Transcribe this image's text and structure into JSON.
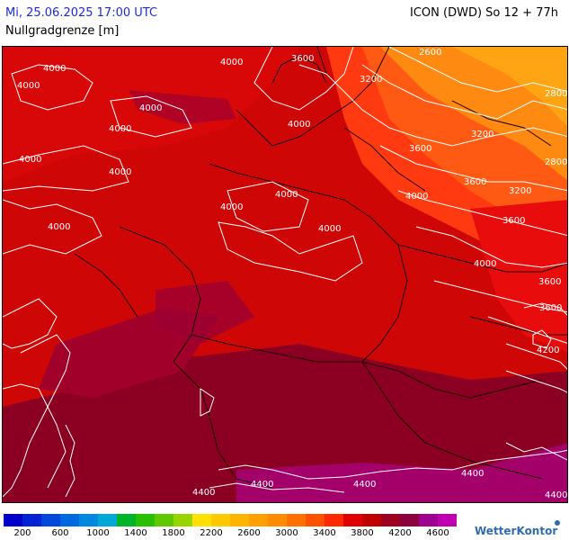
{
  "header": {
    "datetime": "Mi, 25.06.2025 17:00 UTC",
    "model_run": "ICON (DWD) So 12 + 77h",
    "parameter": "Nullgradgrenze [m]"
  },
  "map": {
    "region": "Germany and surroundings",
    "contour_labels": [
      "4000",
      "4000",
      "4000",
      "4000",
      "4000",
      "4000",
      "4000",
      "4000",
      "4000",
      "4000",
      "4000",
      "4000",
      "4000",
      "4000",
      "3600",
      "3600",
      "3600",
      "3600",
      "3600",
      "3600",
      "3200",
      "3200",
      "3200",
      "2800",
      "2800",
      "4200",
      "4400",
      "4400",
      "4400",
      "4400",
      "4400",
      "2600"
    ],
    "fill_colors": {
      "low_east": "#ff9f12",
      "mid_east": "#ff5a14",
      "main": "#cf0606",
      "south": "#8b0022",
      "southeast": "#a3006a"
    }
  },
  "legend": {
    "colors": [
      "#0000c8",
      "#0024d4",
      "#0048dc",
      "#0068e0",
      "#0088e0",
      "#00a8d8",
      "#00b428",
      "#28c000",
      "#60c800",
      "#98d400",
      "#ffe000",
      "#ffc800",
      "#ffb400",
      "#ffa000",
      "#ff8c00",
      "#ff7000",
      "#ff5000",
      "#ff2800",
      "#e00000",
      "#c00000",
      "#a00020",
      "#8c0040",
      "#a00090",
      "#c000b0"
    ],
    "ticks": [
      "200",
      "600",
      "1000",
      "1400",
      "1800",
      "2200",
      "2600",
      "3000",
      "3400",
      "3800",
      "4200",
      "4600"
    ]
  },
  "brand": "WetterKontor"
}
